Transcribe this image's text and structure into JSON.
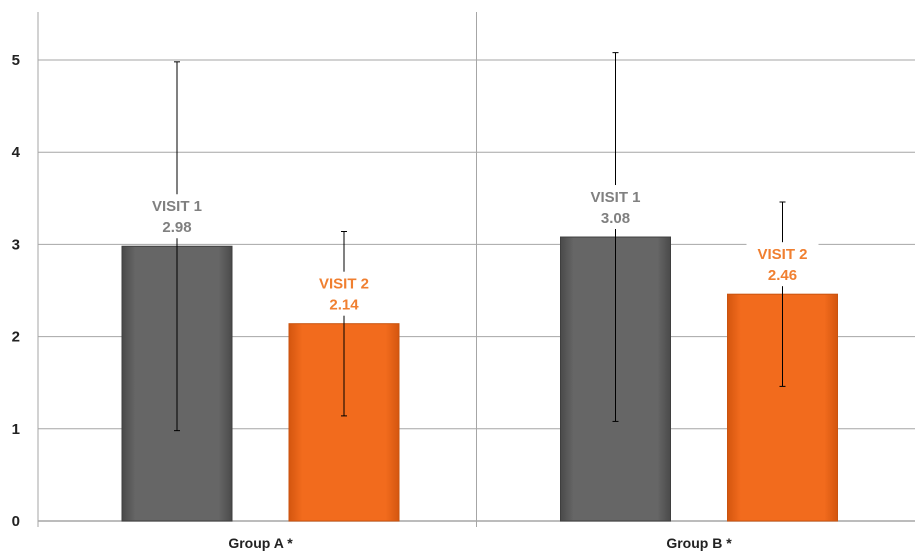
{
  "chart_data": {
    "type": "bar",
    "title": "",
    "xlabel": "",
    "ylabel": "",
    "ylim": [
      0,
      5.5
    ],
    "yticks": [
      0,
      1,
      2,
      3,
      4,
      5
    ],
    "grid": true,
    "legend": "none",
    "categories": [
      "Group A *",
      "Group B *"
    ],
    "series": [
      {
        "name": "VISIT 1",
        "color": "#666666",
        "label_color": "#808080",
        "values": [
          2.98,
          3.08
        ],
        "value_labels": [
          "2.98",
          "3.08"
        ],
        "error_low": [
          0.98,
          1.08
        ],
        "error_high": [
          4.98,
          5.08
        ]
      },
      {
        "name": "VISIT 2",
        "color": "#F26B1D",
        "label_color": "#F07F30",
        "values": [
          2.14,
          2.46
        ],
        "value_labels": [
          "2.14",
          "2.46"
        ],
        "error_low": [
          1.14,
          1.46
        ],
        "error_high": [
          3.14,
          3.46
        ]
      }
    ]
  }
}
